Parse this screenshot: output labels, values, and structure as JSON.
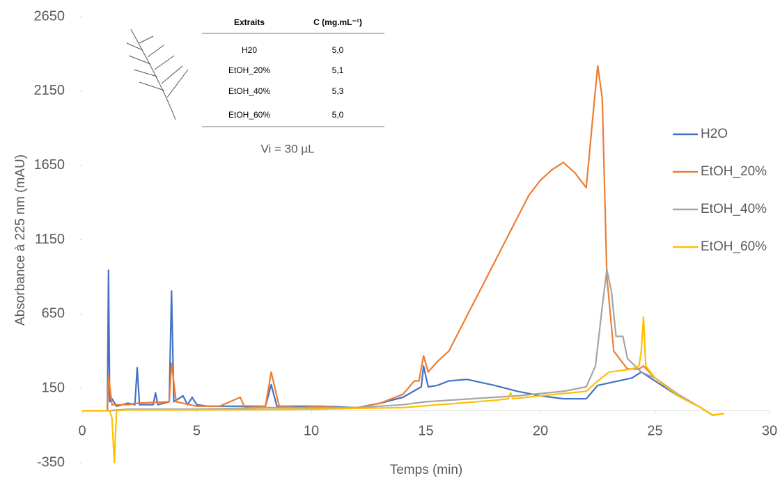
{
  "chart_data": {
    "type": "line",
    "x_label": "Temps (min)",
    "y_label": "Absorbance à 225 nm (mAU)",
    "xlim": [
      0,
      30
    ],
    "xticks": [
      0,
      5,
      10,
      15,
      20,
      25,
      30
    ],
    "ylim": [
      -350,
      2650
    ],
    "yticks": [
      -350,
      150,
      650,
      1150,
      1650,
      2150,
      2650
    ],
    "grid": false,
    "legend": "right",
    "series": [
      {
        "name": "H2O",
        "color": "#4472c4",
        "x": [
          0,
          1.1,
          1.15,
          1.2,
          1.3,
          1.5,
          2.0,
          2.3,
          2.4,
          2.5,
          3.1,
          3.2,
          3.3,
          3.8,
          3.9,
          4.0,
          4.4,
          4.6,
          4.8,
          5.0,
          5.5,
          8.0,
          8.25,
          8.5,
          10.5,
          12,
          13,
          14,
          14.8,
          14.9,
          15.1,
          15.5,
          16,
          16.8,
          18,
          19,
          20,
          21,
          22,
          22.5,
          24,
          24.4,
          25,
          26,
          27,
          27.5,
          28
        ],
        "values": [
          0,
          0,
          945,
          60,
          80,
          30,
          50,
          40,
          290,
          40,
          40,
          120,
          40,
          60,
          805,
          60,
          100,
          40,
          90,
          40,
          30,
          30,
          175,
          30,
          30,
          20,
          50,
          90,
          160,
          300,
          160,
          170,
          200,
          210,
          170,
          130,
          100,
          80,
          80,
          170,
          220,
          260,
          200,
          100,
          20,
          -30,
          -20
        ]
      },
      {
        "name": "EtOH_20%",
        "color": "#ed7d31",
        "x": [
          0,
          1.1,
          1.15,
          1.3,
          2,
          2.4,
          3.8,
          3.9,
          4.1,
          5,
          6,
          6.9,
          7.1,
          8,
          8.25,
          8.6,
          9.5,
          10.5,
          11,
          12,
          13,
          14,
          14.5,
          14.7,
          14.9,
          15.1,
          15.5,
          16,
          16.5,
          17,
          17.5,
          18,
          18.5,
          19,
          19.5,
          20,
          20.5,
          21,
          21.5,
          22,
          22.3,
          22.5,
          22.7,
          22.9,
          23.2,
          23.8,
          24.3,
          24.5,
          25,
          26,
          27,
          27.5,
          28
        ],
        "values": [
          0,
          0,
          240,
          40,
          40,
          50,
          60,
          320,
          60,
          30,
          30,
          90,
          20,
          30,
          260,
          30,
          20,
          30,
          20,
          20,
          50,
          110,
          200,
          200,
          370,
          260,
          330,
          400,
          550,
          700,
          850,
          1000,
          1150,
          1300,
          1450,
          1550,
          1620,
          1670,
          1600,
          1500,
          2000,
          2320,
          2100,
          900,
          400,
          280,
          280,
          300,
          220,
          110,
          20,
          -30,
          -20
        ]
      },
      {
        "name": "EtOH_40%",
        "color": "#a5a5a5",
        "x": [
          0,
          1.2,
          2,
          5,
          8,
          10,
          12,
          14,
          15,
          17,
          19,
          21,
          22,
          22.4,
          22.7,
          22.9,
          23.1,
          23.3,
          23.6,
          23.8,
          24,
          24.4,
          25,
          26,
          27,
          27.5,
          28
        ],
        "values": [
          0,
          0,
          10,
          10,
          20,
          20,
          20,
          40,
          60,
          80,
          100,
          130,
          160,
          300,
          700,
          950,
          800,
          500,
          500,
          350,
          320,
          260,
          220,
          110,
          20,
          -30,
          -20
        ]
      },
      {
        "name": "EtOH_60%",
        "color": "#ffc000",
        "x": [
          0,
          1.2,
          1.3,
          1.4,
          1.5,
          2,
          5,
          10,
          14,
          18,
          18.6,
          18.7,
          18.8,
          20,
          22,
          22.5,
          23,
          24,
          24.3,
          24.4,
          24.5,
          24.6,
          25,
          26,
          27,
          27.5,
          28
        ],
        "values": [
          0,
          0,
          -50,
          -350,
          0,
          5,
          5,
          10,
          20,
          70,
          80,
          120,
          80,
          100,
          130,
          200,
          260,
          280,
          300,
          400,
          630,
          300,
          220,
          100,
          20,
          -30,
          -20
        ]
      }
    ],
    "inset_table": {
      "header": [
        "Extraits",
        "C (mg.mL⁻¹)"
      ],
      "rows": [
        [
          "H20",
          "5,0"
        ],
        [
          "EtOH_20%",
          "5,1"
        ],
        [
          "EtOH_40%",
          "5,3"
        ],
        [
          "EtOH_60%",
          "5,0"
        ]
      ]
    },
    "annotation": "Vi = 30 µL"
  }
}
